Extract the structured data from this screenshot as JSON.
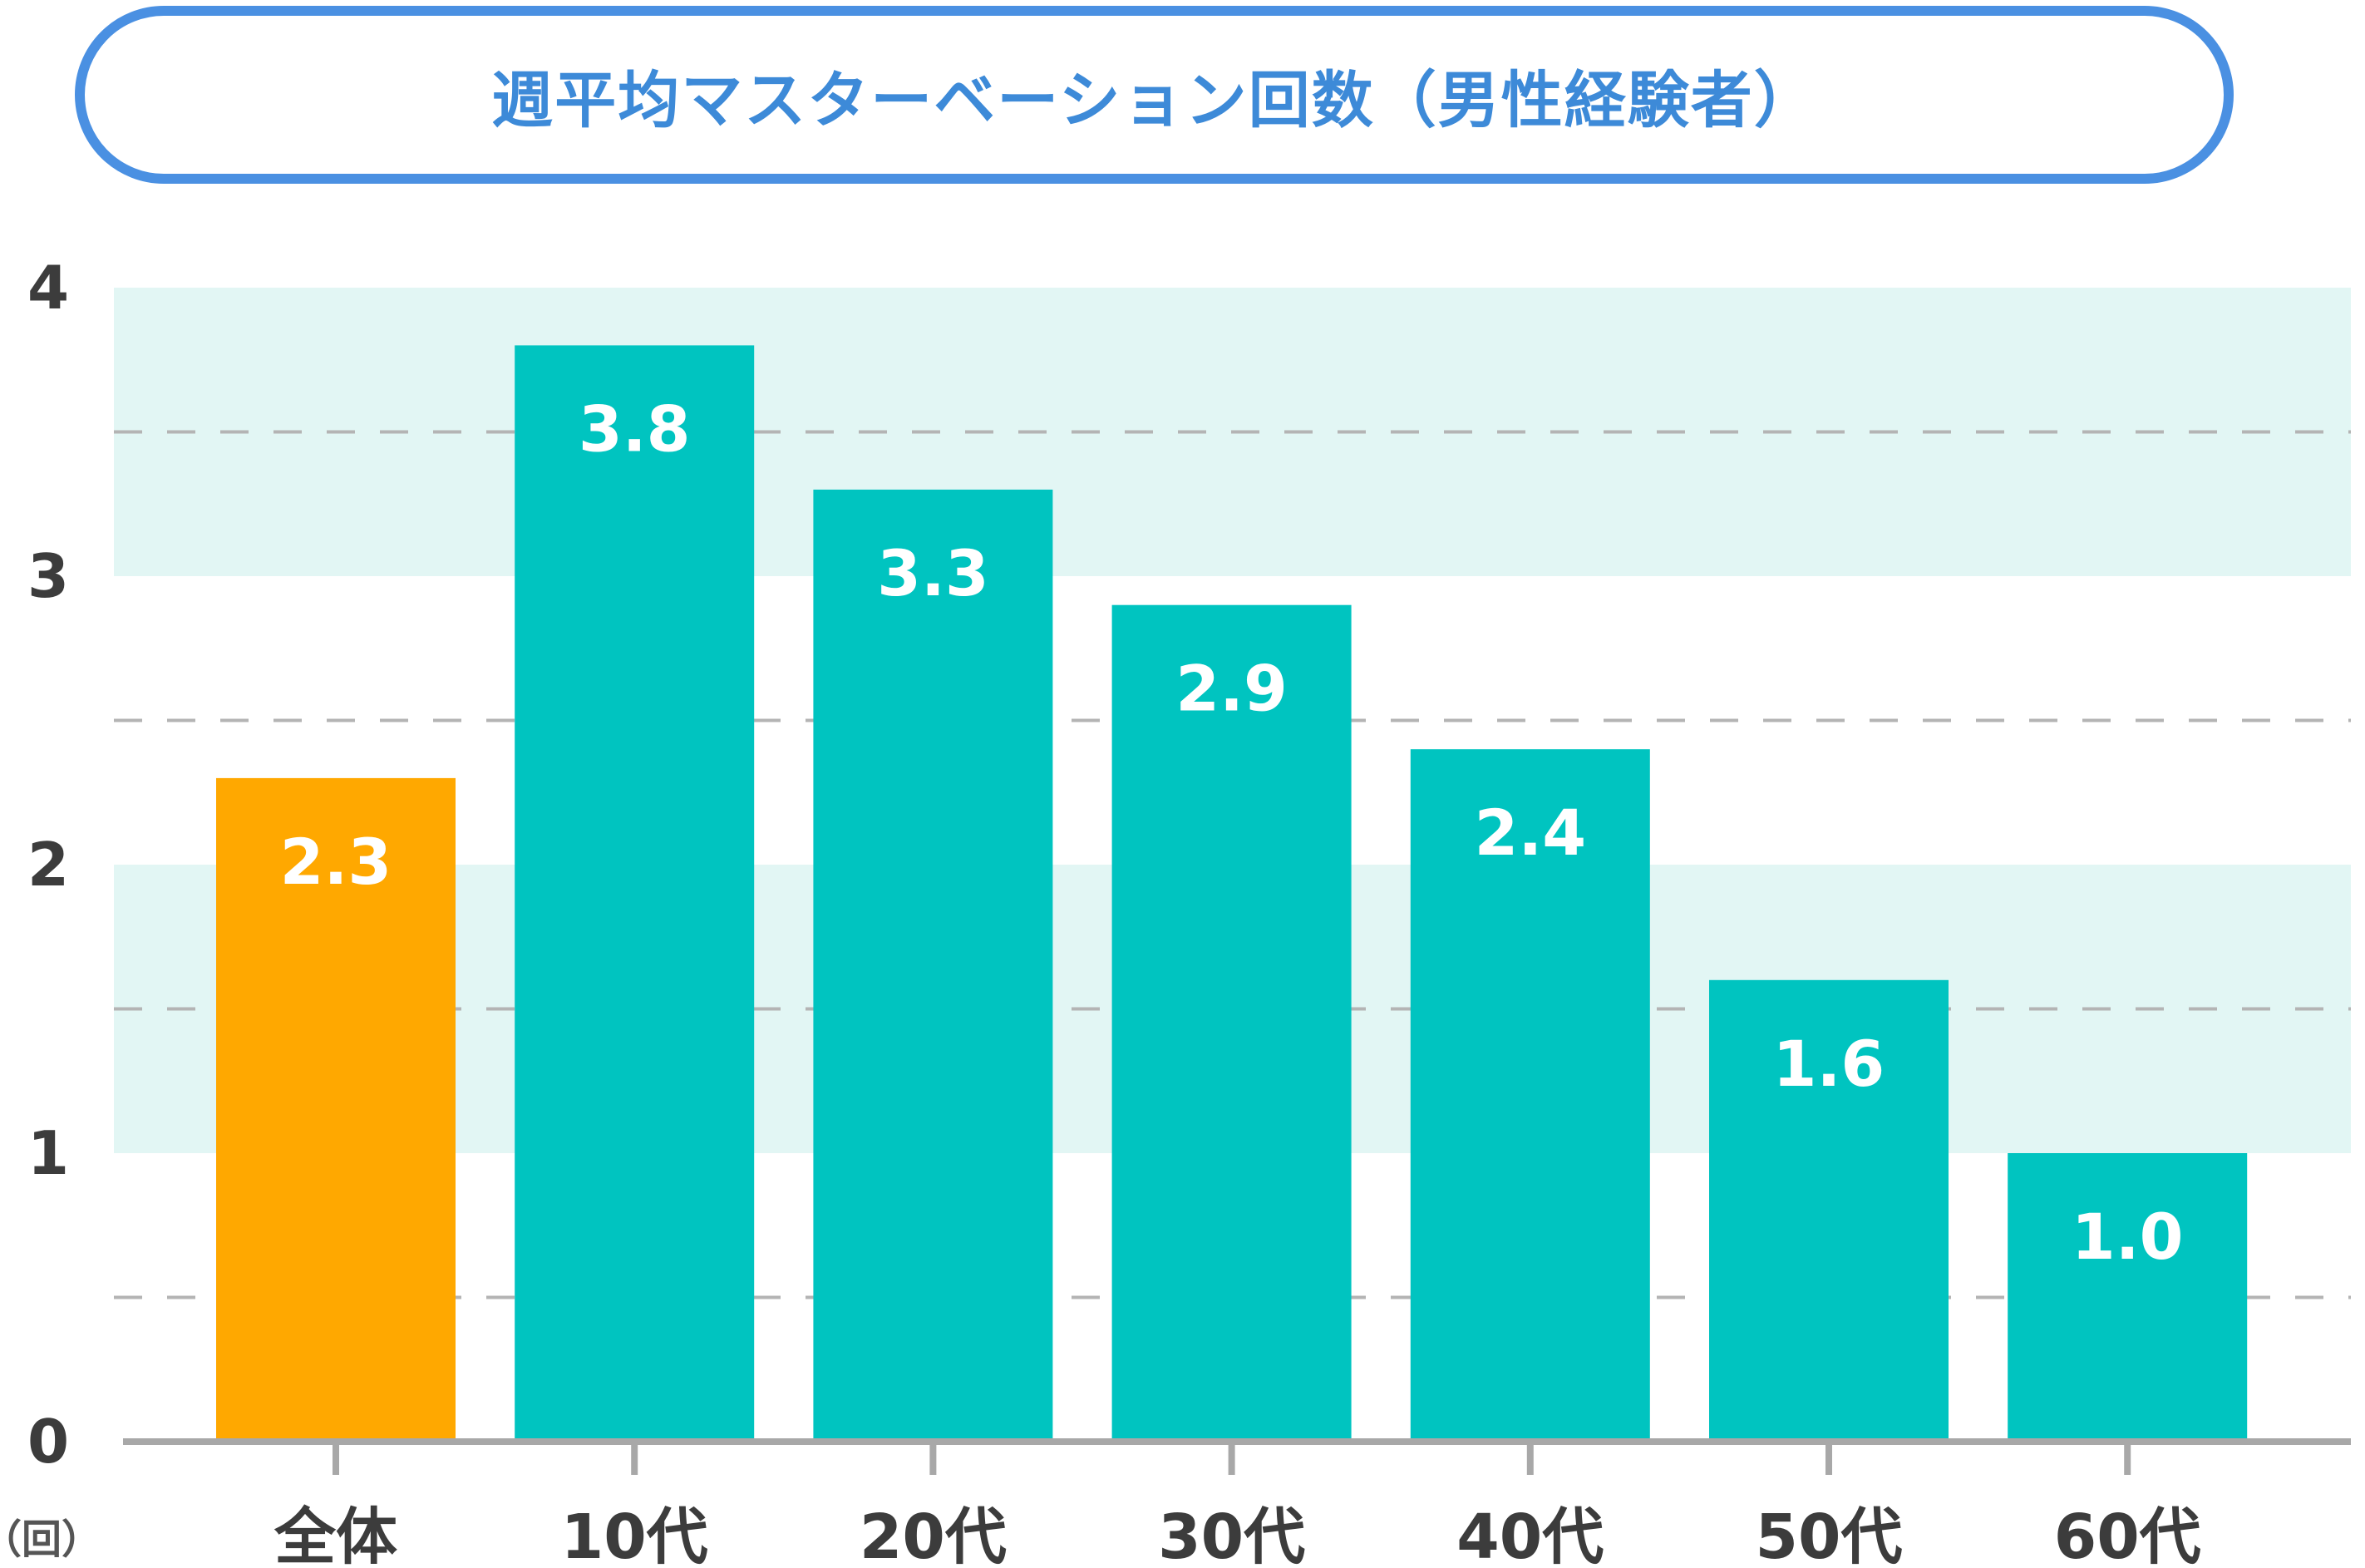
{
  "title": "週平均マスターベーション回数（男性経験者）",
  "unit_label": "（回）",
  "colors": {
    "title": "#3d8ad8",
    "title_border": "#4a90e2",
    "overall_bar": "#ffa800",
    "age_bars": "#00c4c0",
    "band": "#e2f6f4",
    "grid": "#b4b4b4",
    "axis": "#a8a8a8",
    "value_label": "#ffffff"
  },
  "chart_data": {
    "type": "bar",
    "title": "週平均マスターベーション回数（男性経験者）",
    "categories": [
      "全体",
      "10代",
      "20代",
      "30代",
      "40代",
      "50代",
      "60代"
    ],
    "values": [
      2.3,
      3.8,
      3.3,
      2.9,
      2.4,
      1.6,
      1.0
    ],
    "value_labels": [
      "2.3",
      "3.8",
      "3.3",
      "2.9",
      "2.4",
      "1.6",
      "1.0"
    ],
    "bar_colors": [
      "#ffa800",
      "#00c4c0",
      "#00c4c0",
      "#00c4c0",
      "#00c4c0",
      "#00c4c0",
      "#00c4c0"
    ],
    "ylim": [
      0,
      4
    ],
    "yticks": [
      0,
      1,
      2,
      3,
      4
    ],
    "ytick_labels": [
      "0",
      "1",
      "2",
      "3",
      "4"
    ],
    "ylabel": "（回）",
    "shaded_bands": [
      [
        1,
        2
      ],
      [
        3,
        4
      ]
    ],
    "dashed_gridlines": [
      0.5,
      1.5,
      2.5,
      3.5
    ],
    "legend": "none"
  }
}
